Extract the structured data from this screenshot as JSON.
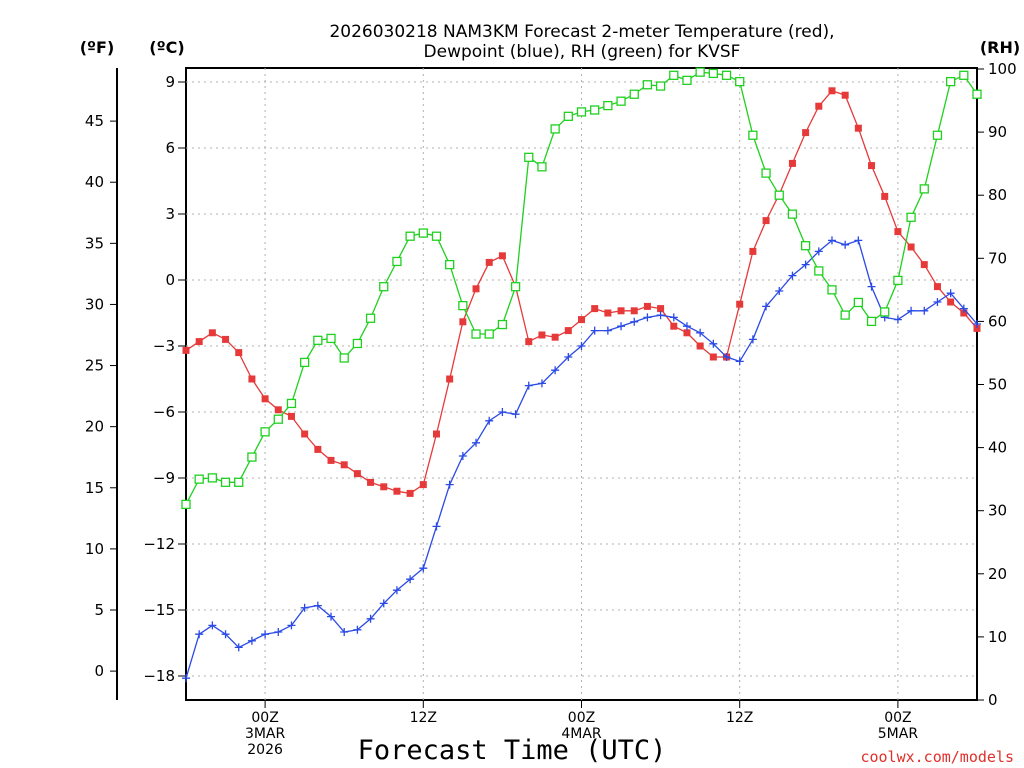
{
  "chart_data": {
    "type": "line",
    "title_lines": [
      "2026030218 NAM3KM Forecast 2-meter Temperature (red),",
      "Dewpoint (blue), RH (green) for KVSF"
    ],
    "units": {
      "fahrenheit": "(ºF)",
      "celsius": "(ºC)",
      "rh": "(RH)"
    },
    "xlabel": "Forecast Time (UTC)",
    "credit": "coolwx.com/models",
    "x_range_hours": [
      18,
      78
    ],
    "x_ticks": [
      {
        "hour": 24,
        "lines": [
          "00Z",
          "3MAR",
          "2026"
        ]
      },
      {
        "hour": 36,
        "lines": [
          "12Z"
        ]
      },
      {
        "hour": 48,
        "lines": [
          "00Z",
          "4MAR"
        ]
      },
      {
        "hour": 60,
        "lines": [
          "12Z"
        ]
      },
      {
        "hour": 72,
        "lines": [
          "00Z",
          "5MAR"
        ]
      }
    ],
    "celsius_axis": {
      "range": [
        -18.2,
        9.6
      ],
      "ticks": [
        9,
        6,
        3,
        0,
        -3,
        -6,
        -9,
        -12,
        -15,
        -18
      ]
    },
    "fahrenheit_axis": {
      "ticks": [
        45,
        40,
        35,
        30,
        25,
        20,
        15,
        10,
        5,
        0
      ]
    },
    "rh_axis": {
      "range": [
        0,
        100
      ],
      "ticks": [
        100,
        90,
        80,
        70,
        60,
        50,
        40,
        30,
        20,
        10,
        0
      ]
    },
    "colors": {
      "temperature": "#e63a3a",
      "dewpoint": "#2a4ae6",
      "rh": "#1fd11f",
      "grid": "#b0b0b0",
      "credit": "#e0302a"
    },
    "series": [
      {
        "name": "Temperature",
        "unit": "C",
        "color": "#e63a3a",
        "marker": "filled-square",
        "times": [
          18,
          19,
          20,
          21,
          22,
          23,
          24,
          25,
          26,
          27,
          28,
          29,
          30,
          31,
          32,
          33,
          34,
          35,
          36,
          37,
          38,
          39,
          40,
          41,
          42,
          43,
          44,
          45,
          46,
          47,
          48,
          49,
          50,
          51,
          52,
          53,
          54,
          55,
          56,
          57,
          58,
          59,
          60,
          61,
          62,
          63,
          64,
          65,
          66,
          67,
          68,
          69,
          70,
          71,
          72,
          73,
          74,
          75,
          76,
          77,
          78
        ],
        "values": [
          -3.2,
          -2.8,
          -2.4,
          -2.7,
          -3.3,
          -4.5,
          -5.4,
          -5.9,
          -6.2,
          -7.0,
          -7.7,
          -8.2,
          -8.4,
          -8.8,
          -9.2,
          -9.4,
          -9.6,
          -9.7,
          -9.3,
          -7.0,
          -4.5,
          -1.9,
          -0.4,
          0.8,
          1.1,
          -0.3,
          -2.8,
          -2.5,
          -2.6,
          -2.3,
          -1.8,
          -1.3,
          -1.5,
          -1.4,
          -1.4,
          -1.2,
          -1.3,
          -2.1,
          -2.4,
          -3.0,
          -3.5,
          -3.5,
          -1.1,
          1.3,
          2.7,
          3.9,
          5.3,
          6.7,
          7.9,
          8.6,
          8.4,
          6.9,
          5.2,
          3.8,
          2.2,
          1.5,
          0.7,
          -0.3,
          -1.0,
          -1.5,
          -2.2
        ]
      },
      {
        "name": "Dewpoint",
        "unit": "C",
        "color": "#2a4ae6",
        "marker": "plus",
        "times": [
          18,
          19,
          20,
          21,
          22,
          23,
          24,
          25,
          26,
          27,
          28,
          29,
          30,
          31,
          32,
          33,
          34,
          35,
          36,
          37,
          38,
          39,
          40,
          41,
          42,
          43,
          44,
          45,
          46,
          47,
          48,
          49,
          50,
          51,
          52,
          53,
          54,
          55,
          56,
          57,
          58,
          59,
          60,
          61,
          62,
          63,
          64,
          65,
          66,
          67,
          68,
          69,
          70,
          71,
          72,
          73,
          74,
          75,
          76,
          77,
          78
        ],
        "values": [
          -18.1,
          -16.1,
          -15.7,
          -16.1,
          -16.7,
          -16.4,
          -16.1,
          -16.0,
          -15.7,
          -14.9,
          -14.8,
          -15.3,
          -16.0,
          -15.9,
          -15.4,
          -14.7,
          -14.1,
          -13.6,
          -13.1,
          -11.2,
          -9.3,
          -8.0,
          -7.4,
          -6.4,
          -6.0,
          -6.1,
          -4.8,
          -4.7,
          -4.1,
          -3.5,
          -3.0,
          -2.3,
          -2.3,
          -2.1,
          -1.9,
          -1.7,
          -1.6,
          -1.7,
          -2.1,
          -2.4,
          -2.9,
          -3.5,
          -3.7,
          -2.7,
          -1.2,
          -0.5,
          0.2,
          0.7,
          1.3,
          1.8,
          1.6,
          1.8,
          -0.3,
          -1.7,
          -1.8,
          -1.4,
          -1.4,
          -1.0,
          -0.6,
          -1.3,
          -2.0
        ]
      },
      {
        "name": "RH",
        "unit": "%",
        "color": "#1fd11f",
        "marker": "open-square",
        "times": [
          18,
          19,
          20,
          21,
          22,
          23,
          24,
          25,
          26,
          27,
          28,
          29,
          30,
          31,
          32,
          33,
          34,
          35,
          36,
          37,
          38,
          39,
          40,
          41,
          42,
          43,
          44,
          45,
          46,
          47,
          48,
          49,
          50,
          51,
          52,
          53,
          54,
          55,
          56,
          57,
          58,
          59,
          60,
          61,
          62,
          63,
          64,
          65,
          66,
          67,
          68,
          69,
          70,
          71,
          72,
          73,
          74,
          75,
          76,
          77,
          78
        ],
        "values": [
          31,
          35,
          35.2,
          34.5,
          34.5,
          38.5,
          42.5,
          44.5,
          47,
          53.5,
          57,
          57.3,
          54.2,
          56.5,
          60.5,
          65.5,
          69.5,
          73.5,
          74,
          73.5,
          69,
          62.5,
          58,
          58,
          59.5,
          65.5,
          86,
          84.5,
          90.5,
          92.5,
          93.2,
          93.5,
          94.2,
          94.9,
          96,
          97.5,
          97.3,
          99,
          98.2,
          99.5,
          99.3,
          99,
          98,
          89.5,
          83.5,
          80,
          77,
          72,
          68,
          65,
          61,
          63,
          60,
          61.5,
          66.5,
          76.5,
          81,
          89.5,
          98,
          99,
          96
        ]
      }
    ]
  }
}
